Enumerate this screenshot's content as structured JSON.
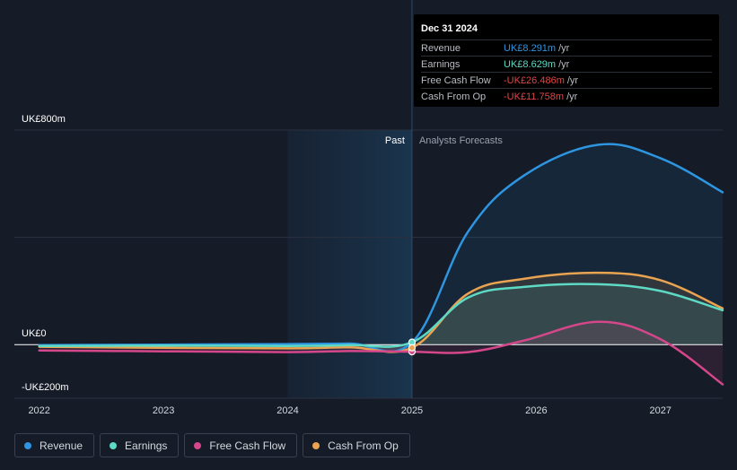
{
  "chart_data": {
    "type": "line",
    "y_unit": "UK£m",
    "ylim": [
      -200,
      800
    ],
    "xlim": [
      2021.8,
      2027.5
    ],
    "y_tick_labels": [
      {
        "value": 800,
        "label": "UK£800m"
      },
      {
        "value": 0,
        "label": "UK£0"
      },
      {
        "value": -200,
        "label": "-UK£200m"
      }
    ],
    "x_tick_labels": [
      {
        "value": 2022,
        "label": "2022"
      },
      {
        "value": 2023,
        "label": "2023"
      },
      {
        "value": 2024,
        "label": "2024"
      },
      {
        "value": 2025,
        "label": "2025"
      },
      {
        "value": 2026,
        "label": "2026"
      },
      {
        "value": 2027,
        "label": "2027"
      }
    ],
    "divider_x": 2025,
    "past_region_x": [
      2024,
      2025
    ],
    "past_label": "Past",
    "forecast_label": "Analysts Forecasts",
    "series": [
      {
        "name": "Revenue",
        "color": "#2e95e0",
        "x": [
          2022,
          2023,
          2024,
          2024.5,
          2025,
          2025.45,
          2025.9,
          2026.5,
          2027.0,
          2027.5
        ],
        "y": [
          -2,
          0,
          2,
          4,
          8.291,
          420,
          630,
          745,
          695,
          568
        ]
      },
      {
        "name": "Earnings",
        "color": "#5ed9c4",
        "x": [
          2022,
          2023,
          2024,
          2024.5,
          2025,
          2025.45,
          2025.9,
          2026.5,
          2027.0,
          2027.5
        ],
        "y": [
          -5,
          -4,
          -5,
          -2,
          8.629,
          175,
          215,
          225,
          200,
          128
        ]
      },
      {
        "name": "Free Cash Flow",
        "color": "#d4478a",
        "x": [
          2022,
          2023,
          2024,
          2024.5,
          2025,
          2025.45,
          2025.9,
          2026.5,
          2027.0,
          2027.5
        ],
        "y": [
          -22,
          -25,
          -28,
          -24,
          -26.486,
          -28,
          15,
          85,
          20,
          -148
        ]
      },
      {
        "name": "Cash From Op",
        "color": "#e9a451",
        "x": [
          2022,
          2023,
          2024,
          2024.5,
          2025,
          2025.45,
          2025.9,
          2026.5,
          2027.0,
          2027.5
        ],
        "y": [
          -8,
          -12,
          -14,
          -10,
          -11.758,
          190,
          245,
          268,
          240,
          135
        ]
      }
    ]
  },
  "tooltip": {
    "title": "Dec 31 2024",
    "rows": [
      {
        "label": "Revenue",
        "value": "UK£8.291m",
        "unit": "/yr",
        "color": "#2e95e0"
      },
      {
        "label": "Earnings",
        "value": "UK£8.629m",
        "unit": "/yr",
        "color": "#5ed9c4"
      },
      {
        "label": "Free Cash Flow",
        "value": "-UK£26.486m",
        "unit": "/yr",
        "color": "#e04646"
      },
      {
        "label": "Cash From Op",
        "value": "-UK£11.758m",
        "unit": "/yr",
        "color": "#e04646"
      }
    ]
  },
  "legend": [
    {
      "label": "Revenue",
      "color": "#2e95e0"
    },
    {
      "label": "Earnings",
      "color": "#5ed9c4"
    },
    {
      "label": "Free Cash Flow",
      "color": "#d4478a"
    },
    {
      "label": "Cash From Op",
      "color": "#e9a451"
    }
  ]
}
